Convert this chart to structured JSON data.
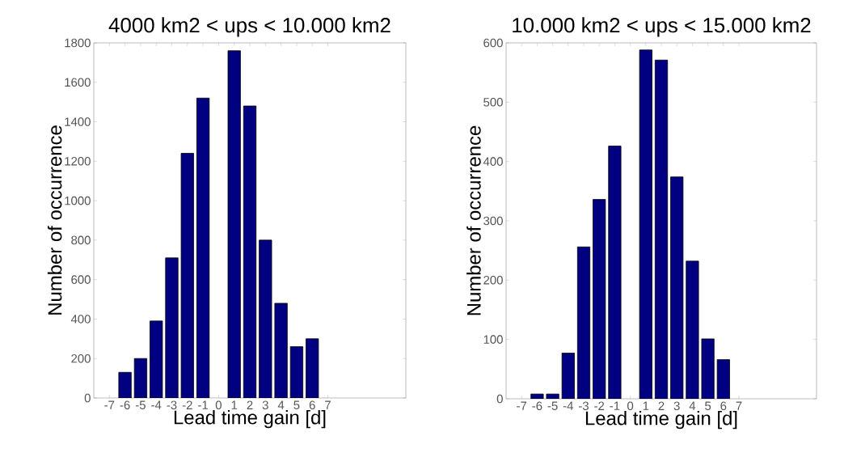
{
  "chart_data": [
    {
      "type": "bar",
      "title": "4000 km2 < ups < 10.000 km2",
      "xlabel": "Lead time gain [d]",
      "ylabel": "Number of occurrence",
      "x": [
        -6,
        -5,
        -4,
        -3,
        -2,
        -1,
        1,
        2,
        3,
        4,
        5,
        6
      ],
      "values": [
        130,
        200,
        390,
        710,
        1240,
        1520,
        1760,
        1480,
        800,
        480,
        260,
        300
      ],
      "color": "#000080",
      "xlim": [
        -8,
        12
      ],
      "ylim": [
        0,
        1800
      ],
      "xticks": [
        -7,
        -6,
        -5,
        -4,
        -3,
        -2,
        -1,
        0,
        1,
        2,
        3,
        4,
        5,
        6,
        7
      ],
      "yticks": [
        0,
        200,
        400,
        600,
        800,
        1000,
        1200,
        1400,
        1600,
        1800
      ]
    },
    {
      "type": "bar",
      "title": "10.000 km2 < ups < 15.000 km2",
      "xlabel": "Lead time gain [d]",
      "ylabel": "Number of occurrence",
      "x": [
        -6,
        -5,
        -4,
        -3,
        -2,
        -1,
        1,
        2,
        3,
        4,
        5,
        6
      ],
      "values": [
        8,
        8,
        77,
        256,
        336,
        426,
        588,
        571,
        374,
        232,
        101,
        66
      ],
      "color": "#000080",
      "xlim": [
        -8,
        12
      ],
      "ylim": [
        0,
        600
      ],
      "xticks": [
        -7,
        -6,
        -5,
        -4,
        -3,
        -2,
        -1,
        0,
        1,
        2,
        3,
        4,
        5,
        6,
        7
      ],
      "yticks": [
        0,
        100,
        200,
        300,
        400,
        500,
        600
      ]
    }
  ]
}
